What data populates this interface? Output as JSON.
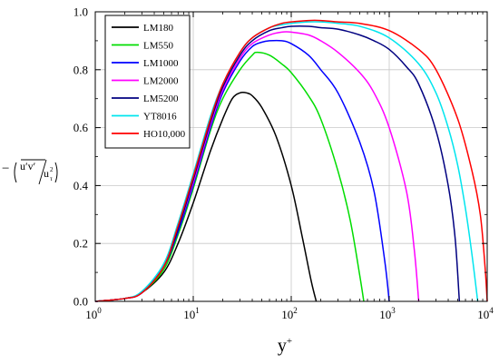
{
  "chart_data": {
    "type": "line",
    "x_scale": "log",
    "xlim": [
      1,
      10000
    ],
    "ylim": [
      0.0,
      1.0
    ],
    "grid": true,
    "legend_placement": "top-left",
    "xlabel": "y⁺",
    "ylabel": "−(u′v′/u²τ)",
    "x_ticks": [
      1,
      10,
      100,
      1000,
      10000
    ],
    "x_tick_labels": [
      {
        "base": "10",
        "exp": "0"
      },
      {
        "base": "10",
        "exp": "1"
      },
      {
        "base": "10",
        "exp": "2"
      },
      {
        "base": "10",
        "exp": "3"
      },
      {
        "base": "10",
        "exp": "4"
      }
    ],
    "y_ticks": [
      0.0,
      0.2,
      0.4,
      0.6,
      0.8,
      1.0
    ],
    "y_tick_labels": [
      "0.0",
      "0.2",
      "0.4",
      "0.6",
      "0.8",
      "1.0"
    ],
    "series": [
      {
        "name": "LM180",
        "color": "#000000",
        "x": [
          1,
          2,
          3,
          5,
          7,
          10,
          15,
          20,
          25,
          30,
          35,
          40,
          50,
          70,
          100,
          130,
          160,
          180
        ],
        "y": [
          0.0,
          0.01,
          0.03,
          0.1,
          0.2,
          0.34,
          0.52,
          0.63,
          0.7,
          0.72,
          0.72,
          0.71,
          0.67,
          0.57,
          0.4,
          0.22,
          0.07,
          0.0
        ]
      },
      {
        "name": "LM550",
        "color": "#00dd00",
        "x": [
          1,
          2,
          3,
          5,
          7,
          10,
          15,
          20,
          30,
          40,
          45,
          60,
          80,
          100,
          150,
          200,
          300,
          400,
          500,
          550
        ],
        "y": [
          0.0,
          0.01,
          0.03,
          0.11,
          0.23,
          0.39,
          0.59,
          0.7,
          0.8,
          0.85,
          0.86,
          0.85,
          0.82,
          0.79,
          0.71,
          0.63,
          0.45,
          0.28,
          0.09,
          0.0
        ]
      },
      {
        "name": "LM1000",
        "color": "#0000ff",
        "x": [
          1,
          2,
          3,
          5,
          7,
          10,
          15,
          20,
          30,
          40,
          50,
          60,
          80,
          100,
          150,
          200,
          300,
          500,
          700,
          900,
          1000
        ],
        "y": [
          0.0,
          0.01,
          0.03,
          0.12,
          0.24,
          0.4,
          0.6,
          0.72,
          0.83,
          0.88,
          0.895,
          0.9,
          0.9,
          0.89,
          0.85,
          0.8,
          0.72,
          0.55,
          0.38,
          0.14,
          0.0
        ]
      },
      {
        "name": "LM2000",
        "color": "#ff00ff",
        "x": [
          1,
          2,
          3,
          5,
          7,
          10,
          15,
          20,
          30,
          40,
          60,
          80,
          100,
          150,
          200,
          300,
          500,
          700,
          1000,
          1500,
          1800,
          2000
        ],
        "y": [
          0.0,
          0.01,
          0.03,
          0.12,
          0.25,
          0.41,
          0.61,
          0.73,
          0.84,
          0.89,
          0.92,
          0.93,
          0.93,
          0.92,
          0.9,
          0.86,
          0.79,
          0.72,
          0.6,
          0.38,
          0.18,
          0.0
        ]
      },
      {
        "name": "LM5200",
        "color": "#000080",
        "x": [
          1,
          2,
          3,
          5,
          7,
          10,
          15,
          20,
          30,
          40,
          60,
          80,
          100,
          150,
          200,
          300,
          500,
          700,
          1000,
          1500,
          2000,
          3000,
          4000,
          4700,
          5200
        ],
        "y": [
          0.0,
          0.01,
          0.03,
          0.12,
          0.25,
          0.42,
          0.62,
          0.74,
          0.85,
          0.9,
          0.935,
          0.945,
          0.95,
          0.95,
          0.945,
          0.94,
          0.92,
          0.9,
          0.87,
          0.81,
          0.75,
          0.59,
          0.4,
          0.22,
          0.0
        ]
      },
      {
        "name": "YT8016",
        "color": "#00e5ee",
        "x": [
          1,
          2,
          3,
          5,
          7,
          10,
          15,
          20,
          30,
          40,
          60,
          80,
          100,
          150,
          200,
          300,
          500,
          1000,
          2000,
          3000,
          4000,
          5000,
          6000,
          7000,
          8000
        ],
        "y": [
          0.0,
          0.01,
          0.035,
          0.13,
          0.27,
          0.44,
          0.64,
          0.75,
          0.86,
          0.91,
          0.945,
          0.955,
          0.96,
          0.965,
          0.965,
          0.96,
          0.95,
          0.91,
          0.82,
          0.72,
          0.6,
          0.47,
          0.32,
          0.16,
          0.0
        ]
      },
      {
        "name": "HO10,000",
        "color": "#ff0000",
        "x": [
          1,
          2,
          3,
          5,
          7,
          10,
          15,
          20,
          30,
          40,
          60,
          80,
          100,
          150,
          200,
          300,
          500,
          1000,
          2000,
          3000,
          5000,
          7000,
          8500,
          9500,
          10000
        ],
        "y": [
          0.0,
          0.01,
          0.03,
          0.12,
          0.26,
          0.43,
          0.63,
          0.75,
          0.86,
          0.91,
          0.945,
          0.96,
          0.965,
          0.97,
          0.97,
          0.965,
          0.96,
          0.935,
          0.87,
          0.8,
          0.63,
          0.45,
          0.3,
          0.12,
          0.0
        ]
      }
    ]
  }
}
